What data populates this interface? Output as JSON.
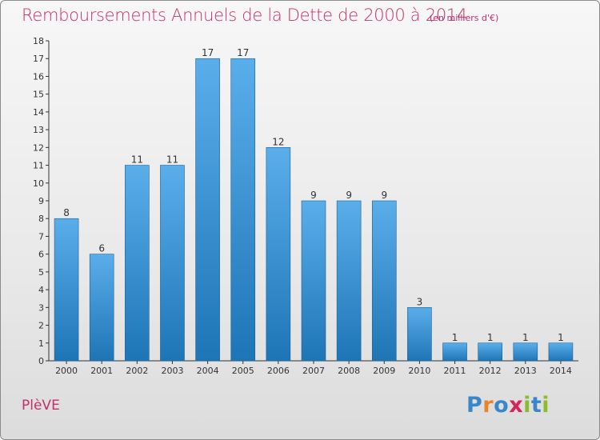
{
  "title": "Remboursements Annuels de la Dette de 2000 à 2014",
  "unit": "(en milliers d'€)",
  "commune": "PlèVE",
  "brand": {
    "letters": [
      "P",
      "r",
      "o",
      "x",
      "i",
      "t",
      "i"
    ],
    "colors": [
      "#3a86c8",
      "#e8842a",
      "#3a86c8",
      "#d6245a",
      "#8dbb2c",
      "#3a86c8",
      "#8dbb2c"
    ]
  },
  "colors": {
    "title": "#c2306b",
    "bar_light": "#5aaeea",
    "bar_dark": "#1e75b6"
  },
  "chart_data": {
    "type": "bar",
    "categories": [
      "2000",
      "2001",
      "2002",
      "2003",
      "2004",
      "2005",
      "2006",
      "2007",
      "2008",
      "2009",
      "2010",
      "2011",
      "2012",
      "2013",
      "2014"
    ],
    "values": [
      8,
      6,
      11,
      11,
      17,
      17,
      12,
      9,
      9,
      9,
      3,
      1,
      1,
      1,
      1
    ],
    "ylim": [
      0,
      18
    ],
    "yticks": [
      "0",
      "1",
      "2",
      "3",
      "4",
      "5",
      "6",
      "7",
      "8",
      "9",
      "10",
      "11",
      "12",
      "13",
      "14",
      "15",
      "16",
      "17",
      "18"
    ],
    "grid": false,
    "legend": "none"
  }
}
